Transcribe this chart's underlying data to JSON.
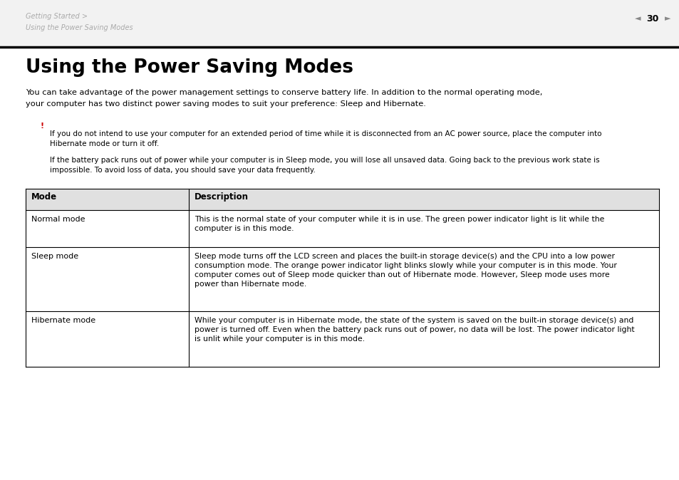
{
  "bg_color": "#ffffff",
  "header_breadcrumb1": "Getting Started >",
  "header_breadcrumb2": "Using the Power Saving Modes",
  "header_page": "30",
  "title": "Using the Power Saving Modes",
  "intro_line1": "You can take advantage of the power management settings to conserve battery life. In addition to the normal operating mode,",
  "intro_line2": "your computer has two distinct power saving modes to suit your preference: Sleep and Hibernate.",
  "exclamation": "!",
  "note1_line1": "If you do not intend to use your computer for an extended period of time while it is disconnected from an AC power source, place the computer into",
  "note1_line2": "Hibernate mode or turn it off.",
  "note2_line1": "If the battery pack runs out of power while your computer is in Sleep mode, you will lose all unsaved data. Going back to the previous work state is",
  "note2_line2": "impossible. To avoid loss of data, you should save your data frequently.",
  "table_header_col1": "Mode",
  "table_header_col2": "Description",
  "table_rows": [
    {
      "mode": "Normal mode",
      "desc_lines": [
        "This is the normal state of your computer while it is in use. The green power indicator light is lit while the",
        "computer is in this mode."
      ]
    },
    {
      "mode": "Sleep mode",
      "desc_lines": [
        "Sleep mode turns off the LCD screen and places the built-in storage device(s) and the CPU into a low power",
        "consumption mode. The orange power indicator light blinks slowly while your computer is in this mode. Your",
        "computer comes out of Sleep mode quicker than out of Hibernate mode. However, Sleep mode uses more",
        "power than Hibernate mode."
      ]
    },
    {
      "mode": "Hibernate mode",
      "desc_lines": [
        "While your computer is in Hibernate mode, the state of the system is saved on the built-in storage device(s) and",
        "power is turned off. Even when the battery pack runs out of power, no data will be lost. The power indicator light",
        "is unlit while your computer is in this mode."
      ]
    }
  ],
  "exclamation_color": "#cc0000",
  "breadcrumb_color": "#aaaaaa",
  "text_color": "#000000",
  "header_bg": "#f0f0f0",
  "table_header_bg": "#e8e8e8"
}
